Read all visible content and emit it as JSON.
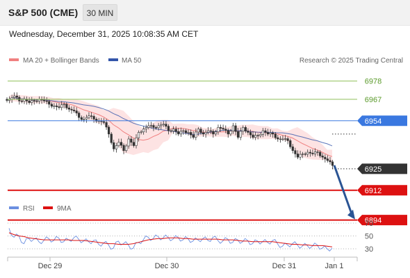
{
  "header": {
    "symbol": "S&P 500 (CME)",
    "timeframe": "30 MIN",
    "timestamp": "Wednesday, December 31, 2025 10:08:35 AM CET"
  },
  "legend": {
    "ma20_label": "MA 20 + Bollinger Bands",
    "ma50_label": "MA 50",
    "source": "Research © 2025 Trading Central",
    "rsi_label": "RSI",
    "rsi_ma_label": "9MA"
  },
  "colors": {
    "ma20": "#f08080",
    "ma50": "#3355aa",
    "bollinger_fill": "#fde3e3",
    "candle": "#333333",
    "support_resistance": "#dd1111",
    "pivot": "#3a78e0",
    "target_green": "#8fbf5a",
    "current_price": "#333333",
    "arrow": "#2a5494",
    "rsi": "#6b8fe0",
    "rsi_ma": "#dd1111"
  },
  "chart_data": [
    {
      "type": "candlestick",
      "title": "S&P 500 (CME) 30 MIN",
      "x_tick_labels": [
        "Dec 29",
        "Dec 30",
        "Dec 31",
        "Jan 1"
      ],
      "ylim": [
        6880,
        6985
      ],
      "price_path": [
        6967,
        6969,
        6966,
        6967,
        6965,
        6966,
        6967,
        6966,
        6964,
        6963,
        6962,
        6964,
        6961,
        6960,
        6956,
        6955,
        6957,
        6955,
        6954,
        6953,
        6946,
        6937,
        6941,
        6936,
        6943,
        6939,
        6947,
        6949,
        6951,
        6950,
        6951,
        6952,
        6948,
        6949,
        6946,
        6948,
        6947,
        6944,
        6949,
        6946,
        6948,
        6946,
        6950,
        6949,
        6946,
        6951,
        6944,
        6950,
        6947,
        6944,
        6945,
        6948,
        6946,
        6946,
        6943,
        6943,
        6942,
        6936,
        6932,
        6934,
        6935,
        6934,
        6935,
        6932,
        6930,
        6927
      ],
      "levels": [
        {
          "label": "6978",
          "value": 6978,
          "kind": "resistance_target"
        },
        {
          "label": "6967",
          "value": 6967,
          "kind": "resistance_target"
        },
        {
          "label": "6954",
          "value": 6954,
          "kind": "pivot"
        },
        {
          "label": "6925",
          "value": 6925,
          "kind": "current_price"
        },
        {
          "label": "6912",
          "value": 6912,
          "kind": "support"
        },
        {
          "label": "6894",
          "value": 6894,
          "kind": "support"
        }
      ],
      "projection": {
        "from": 6925,
        "to": 6894
      }
    },
    {
      "type": "line",
      "title": "RSI",
      "ylim": [
        25,
        75
      ],
      "y_ticks": [
        70,
        50,
        30
      ],
      "series": [
        {
          "name": "RSI",
          "values": [
            62,
            48,
            50,
            38,
            46,
            45,
            41,
            43,
            46,
            43,
            47,
            41,
            44,
            47,
            45,
            42,
            41,
            43,
            37,
            39,
            36,
            31,
            42,
            38,
            36,
            31,
            40,
            44,
            48,
            46,
            49,
            47,
            48,
            45,
            48,
            44,
            46,
            42,
            44,
            46,
            43,
            48,
            43,
            42,
            45,
            40,
            44,
            41,
            43,
            38,
            42,
            41,
            40,
            43,
            38,
            34,
            36,
            38,
            36,
            34,
            35,
            34,
            36,
            31,
            30,
            31
          ]
        },
        {
          "name": "9MA",
          "values": [
            55,
            52,
            50,
            49,
            47,
            46,
            45,
            44,
            44,
            44,
            44,
            44,
            44,
            43,
            43,
            43,
            42,
            41,
            40,
            39,
            38,
            38,
            37,
            37,
            37,
            38,
            40,
            42,
            44,
            45,
            46,
            46,
            47,
            47,
            47,
            46,
            46,
            45,
            45,
            45,
            45,
            45,
            45,
            44,
            44,
            44,
            43,
            42,
            42,
            41,
            41,
            41,
            41,
            41,
            40,
            39,
            38,
            37,
            37,
            36,
            36,
            35,
            35,
            35,
            34,
            33
          ]
        }
      ]
    }
  ]
}
